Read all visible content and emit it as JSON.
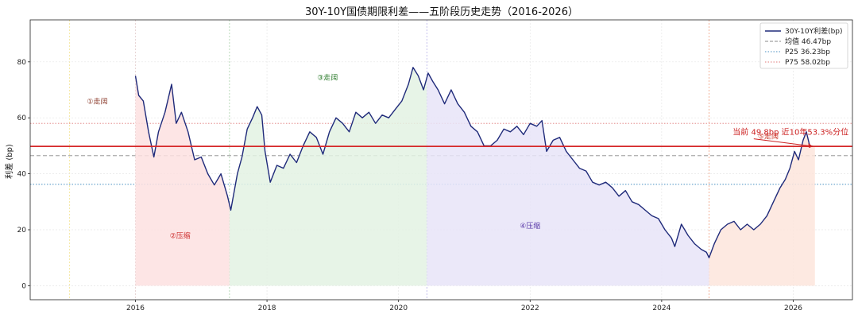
{
  "chart_data": {
    "type": "line",
    "title": "30Y-10Y国债期限利差——五阶段历史走势（2016-2026）",
    "xlabel": "",
    "ylabel": "利差 (bp)",
    "xlim": [
      2014.4,
      2026.9
    ],
    "ylim": [
      -5,
      95
    ],
    "x_ticks": [
      2016,
      2018,
      2020,
      2022,
      2024,
      2026
    ],
    "y_ticks": [
      0,
      20,
      40,
      60,
      80
    ],
    "grid": true,
    "legend_position": "top-right",
    "series": [
      {
        "name": "30Y-10Y利差(bp)",
        "color": "#1f2a7a",
        "points": [
          [
            2016.0,
            75
          ],
          [
            2016.05,
            68
          ],
          [
            2016.12,
            66
          ],
          [
            2016.2,
            55
          ],
          [
            2016.28,
            46
          ],
          [
            2016.35,
            55
          ],
          [
            2016.45,
            62
          ],
          [
            2016.55,
            72
          ],
          [
            2016.62,
            58
          ],
          [
            2016.7,
            62
          ],
          [
            2016.8,
            55
          ],
          [
            2016.9,
            45
          ],
          [
            2017.0,
            46
          ],
          [
            2017.1,
            40
          ],
          [
            2017.2,
            36
          ],
          [
            2017.3,
            40
          ],
          [
            2017.4,
            32
          ],
          [
            2017.45,
            27
          ],
          [
            2017.55,
            40
          ],
          [
            2017.62,
            46
          ],
          [
            2017.7,
            56
          ],
          [
            2017.78,
            60
          ],
          [
            2017.85,
            64
          ],
          [
            2017.92,
            61
          ],
          [
            2017.97,
            48
          ],
          [
            2018.05,
            37
          ],
          [
            2018.15,
            43
          ],
          [
            2018.25,
            42
          ],
          [
            2018.35,
            47
          ],
          [
            2018.45,
            44
          ],
          [
            2018.55,
            50
          ],
          [
            2018.65,
            55
          ],
          [
            2018.75,
            53
          ],
          [
            2018.85,
            47
          ],
          [
            2018.95,
            55
          ],
          [
            2019.05,
            60
          ],
          [
            2019.15,
            58
          ],
          [
            2019.25,
            55
          ],
          [
            2019.35,
            62
          ],
          [
            2019.45,
            60
          ],
          [
            2019.55,
            62
          ],
          [
            2019.65,
            58
          ],
          [
            2019.75,
            61
          ],
          [
            2019.85,
            60
          ],
          [
            2019.95,
            63
          ],
          [
            2020.05,
            66
          ],
          [
            2020.15,
            72
          ],
          [
            2020.22,
            78
          ],
          [
            2020.3,
            75
          ],
          [
            2020.38,
            70
          ],
          [
            2020.45,
            76
          ],
          [
            2020.52,
            73
          ],
          [
            2020.6,
            70
          ],
          [
            2020.7,
            65
          ],
          [
            2020.8,
            70
          ],
          [
            2020.9,
            65
          ],
          [
            2021.0,
            62
          ],
          [
            2021.1,
            57
          ],
          [
            2021.2,
            55
          ],
          [
            2021.3,
            50
          ],
          [
            2021.4,
            50
          ],
          [
            2021.5,
            52
          ],
          [
            2021.6,
            56
          ],
          [
            2021.7,
            55
          ],
          [
            2021.8,
            57
          ],
          [
            2021.9,
            54
          ],
          [
            2022.0,
            58
          ],
          [
            2022.1,
            57
          ],
          [
            2022.18,
            59
          ],
          [
            2022.25,
            48
          ],
          [
            2022.35,
            52
          ],
          [
            2022.45,
            53
          ],
          [
            2022.55,
            48
          ],
          [
            2022.65,
            45
          ],
          [
            2022.75,
            42
          ],
          [
            2022.85,
            41
          ],
          [
            2022.95,
            37
          ],
          [
            2023.05,
            36
          ],
          [
            2023.15,
            37
          ],
          [
            2023.25,
            35
          ],
          [
            2023.35,
            32
          ],
          [
            2023.45,
            34
          ],
          [
            2023.55,
            30
          ],
          [
            2023.65,
            29
          ],
          [
            2023.75,
            27
          ],
          [
            2023.85,
            25
          ],
          [
            2023.95,
            24
          ],
          [
            2024.05,
            20
          ],
          [
            2024.15,
            17
          ],
          [
            2024.2,
            14
          ],
          [
            2024.3,
            22
          ],
          [
            2024.4,
            18
          ],
          [
            2024.5,
            15
          ],
          [
            2024.6,
            13
          ],
          [
            2024.68,
            12
          ],
          [
            2024.72,
            10
          ],
          [
            2024.8,
            15
          ],
          [
            2024.9,
            20
          ],
          [
            2025.0,
            22
          ],
          [
            2025.1,
            23
          ],
          [
            2025.2,
            20
          ],
          [
            2025.3,
            22
          ],
          [
            2025.4,
            20
          ],
          [
            2025.5,
            22
          ],
          [
            2025.6,
            25
          ],
          [
            2025.7,
            30
          ],
          [
            2025.8,
            35
          ],
          [
            2025.88,
            38
          ],
          [
            2025.95,
            42
          ],
          [
            2026.02,
            48
          ],
          [
            2026.08,
            45
          ],
          [
            2026.15,
            52
          ],
          [
            2026.2,
            55
          ],
          [
            2026.25,
            50
          ],
          [
            2026.3,
            49.8
          ]
        ]
      }
    ],
    "reference_lines": [
      {
        "label": "均值 46.47bp",
        "value": 46.47,
        "color": "#888888",
        "style": "dashed"
      },
      {
        "label": "P25 36.23bp",
        "value": 36.23,
        "color": "#4a90c2",
        "style": "dotted"
      },
      {
        "label": "P75 58.02bp",
        "value": 58.02,
        "color": "#e07a7a",
        "style": "dotted"
      }
    ],
    "current_line": {
      "value": 49.8,
      "color": "#d62728"
    },
    "phases": [
      {
        "label": "①走阔",
        "start": 2015.0,
        "end": 2016.0,
        "color": "#f2e28a",
        "fill": null,
        "label_x": 2015.42,
        "label_y": 65,
        "text_color": "#8b3a2a"
      },
      {
        "label": "②压缩",
        "start": 2016.0,
        "end": 2017.43,
        "color": "#e8a0a0",
        "fill": "#fde0e0",
        "label_x": 2016.68,
        "label_y": 17,
        "text_color": "#cc2a2a"
      },
      {
        "label": "③走阔",
        "start": 2017.43,
        "end": 2020.43,
        "color": "#a8d0a8",
        "fill": "#e3f2e3",
        "label_x": 2018.92,
        "label_y": 73.5,
        "text_color": "#2a7a2a"
      },
      {
        "label": "④压缩",
        "start": 2020.43,
        "end": 2024.72,
        "color": "#b8b0e8",
        "fill": "#e8e4f8",
        "label_x": 2022.0,
        "label_y": 20.5,
        "text_color": "#5a3aa8"
      },
      {
        "label": "⑤走阔",
        "start": 2024.72,
        "end": 2026.33,
        "color": "#f0a080",
        "fill": "#fde5dc",
        "label_x": 2025.62,
        "label_y": 52.5,
        "text_color": "#cc3a2a"
      }
    ],
    "annotation": {
      "text": "当前 49.8bp  近10年53.3%分位",
      "x": 2025.08,
      "y": 54.0,
      "arrow_to": [
        2026.3,
        49.8
      ]
    }
  }
}
